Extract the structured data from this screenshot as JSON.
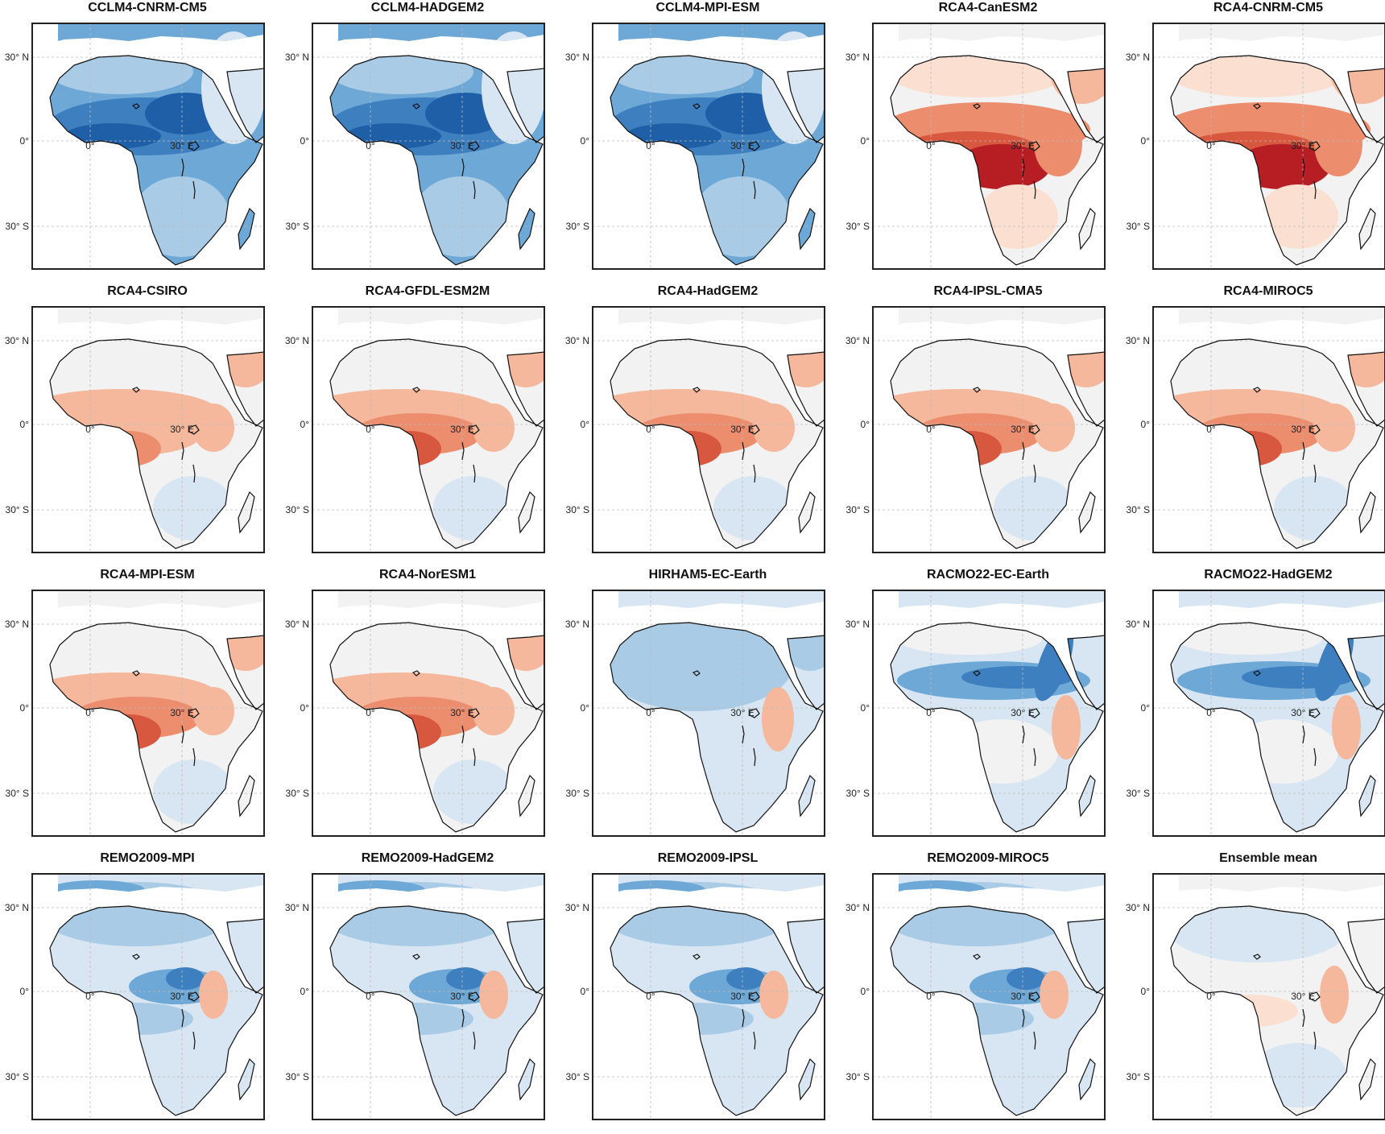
{
  "figure": {
    "panels": [
      {
        "title": "CCLM4-CNRM-CM5",
        "pattern": "blue-strong"
      },
      {
        "title": "CCLM4-HADGEM2",
        "pattern": "blue-strong"
      },
      {
        "title": "CCLM4-MPI-ESM",
        "pattern": "blue-strong"
      },
      {
        "title": "RCA4-CanESM2",
        "pattern": "red-strong"
      },
      {
        "title": "RCA4-CNRM-CM5",
        "pattern": "red-strong"
      },
      {
        "title": "RCA4-CSIRO",
        "pattern": "red-mild"
      },
      {
        "title": "RCA4-GFDL-ESM2M",
        "pattern": "red"
      },
      {
        "title": "RCA4-HadGEM2",
        "pattern": "red"
      },
      {
        "title": "RCA4-IPSL-CMA5",
        "pattern": "red"
      },
      {
        "title": "RCA4-MIROC5",
        "pattern": "red"
      },
      {
        "title": "RCA4-MPI-ESM",
        "pattern": "red"
      },
      {
        "title": "RCA4-NorESM1",
        "pattern": "red"
      },
      {
        "title": "HIRHAM5-EC-Earth",
        "pattern": "blue-mild"
      },
      {
        "title": "RACMO22-EC-Earth",
        "pattern": "blue-sahel"
      },
      {
        "title": "RACMO22-HadGEM2",
        "pattern": "blue-sahel"
      },
      {
        "title": "REMO2009-MPI",
        "pattern": "blue-remo"
      },
      {
        "title": "REMO2009-HadGEM2",
        "pattern": "blue-remo"
      },
      {
        "title": "REMO2009-IPSL",
        "pattern": "blue-remo"
      },
      {
        "title": "REMO2009-MIROC5",
        "pattern": "blue-remo"
      },
      {
        "title": "Ensemble mean",
        "pattern": "mixed-light"
      }
    ],
    "axis_labels": {
      "lat_north": "30° N",
      "lat_equator": "0°",
      "lat_south": "30° S",
      "lon_zero": "0°",
      "lon_thirty": "30° E"
    },
    "colors": {
      "blue": [
        "#f2f2f2",
        "#d7e6f2",
        "#a9cbe6",
        "#6ea8d6",
        "#3e7fc0",
        "#1f5fa8"
      ],
      "red": [
        "#f2f2f2",
        "#fbe0d2",
        "#f6b89c",
        "#ec8e6e",
        "#d8573f",
        "#b61e24"
      ]
    }
  }
}
